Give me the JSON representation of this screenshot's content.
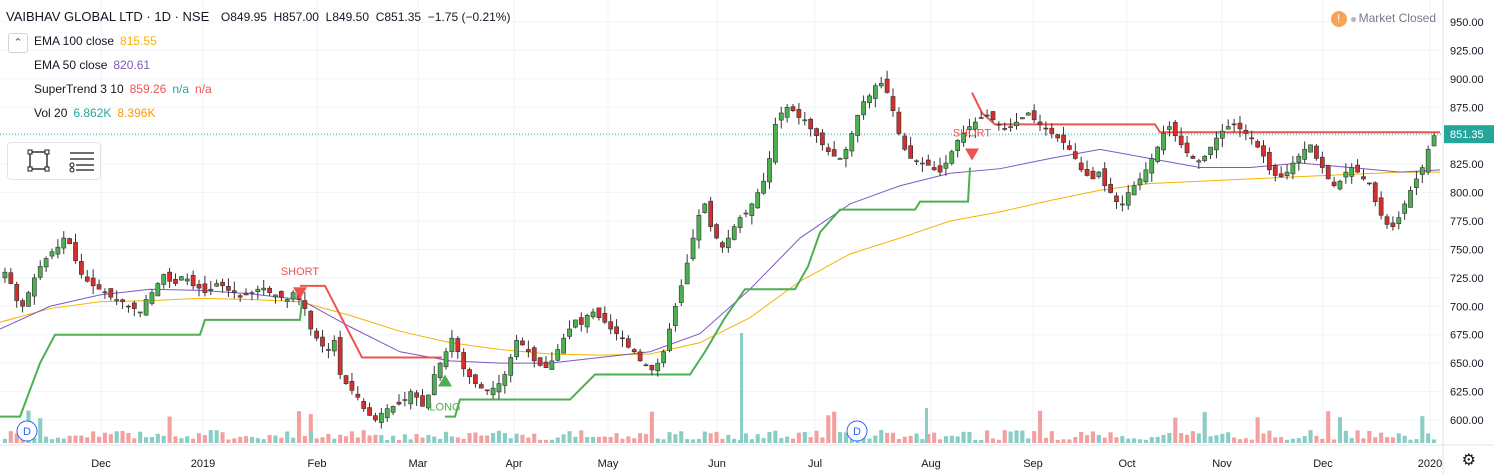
{
  "header": {
    "symbol": "VAIBHAV GLOBAL LTD · 1D · NSE",
    "open_label": "O",
    "open": "849.95",
    "high_label": "H",
    "high": "857.00",
    "low_label": "L",
    "low": "849.50",
    "close_label": "C",
    "close": "851.35",
    "change": "−1.75 (−0.21%)"
  },
  "indicators": [
    {
      "name": "EMA 100 close",
      "values": [
        "815.55"
      ],
      "color": "#f5b400"
    },
    {
      "name": "EMA 50 close",
      "values": [
        "820.61"
      ],
      "color": "#7e57c2"
    },
    {
      "name": "SuperTrend 3 10",
      "values": [
        "859.26",
        "n/a",
        "n/a"
      ],
      "colors": [
        "#ef5350",
        "#26a69a",
        "#ef5350"
      ]
    },
    {
      "name": "Vol 20",
      "values": [
        "6.862K",
        "8.396K"
      ],
      "colors": [
        "#26a69a",
        "#ff9800"
      ]
    }
  ],
  "market_status": {
    "icon": "!",
    "text": "Market Closed"
  },
  "colors": {
    "up": "#4caf50",
    "down": "#d32f2f",
    "ema100": "#f5b400",
    "ema50": "#7e57c2",
    "st_up": "#4caf50",
    "st_down": "#ef5350",
    "vol_up": "#89cdc5",
    "vol_down": "#f3a0a0",
    "last_price_bg": "#26a69a"
  },
  "chart_data": {
    "type": "candlestick",
    "price_axis": {
      "ticks": [
        "950.00",
        "925.00",
        "900.00",
        "875.00",
        "850.00",
        "825.00",
        "800.00",
        "775.00",
        "750.00",
        "725.00",
        "700.00",
        "675.00",
        "650.00",
        "625.00",
        "600.00"
      ],
      "range": [
        585,
        955
      ],
      "last_price": "851.35"
    },
    "time_axis": [
      "Dec",
      "2019",
      "Feb",
      "Mar",
      "Apr",
      "May",
      "Jun",
      "Jul",
      "Aug",
      "Sep",
      "Oct",
      "Nov",
      "Dec",
      "2020"
    ],
    "ema100_points": [
      [
        0,
        686
      ],
      [
        50,
        698
      ],
      [
        100,
        704
      ],
      [
        150,
        705
      ],
      [
        200,
        707
      ],
      [
        250,
        706
      ],
      [
        300,
        704
      ],
      [
        350,
        692
      ],
      [
        400,
        678
      ],
      [
        450,
        668
      ],
      [
        500,
        662
      ],
      [
        550,
        658
      ],
      [
        600,
        657
      ],
      [
        650,
        658
      ],
      [
        700,
        668
      ],
      [
        750,
        690
      ],
      [
        800,
        722
      ],
      [
        850,
        746
      ],
      [
        900,
        760
      ],
      [
        950,
        775
      ],
      [
        1000,
        783
      ],
      [
        1050,
        793
      ],
      [
        1100,
        802
      ],
      [
        1150,
        808
      ],
      [
        1200,
        810
      ],
      [
        1250,
        812
      ],
      [
        1300,
        814
      ],
      [
        1350,
        816
      ],
      [
        1400,
        818
      ],
      [
        1440,
        818
      ]
    ],
    "ema50_points": [
      [
        0,
        680
      ],
      [
        50,
        700
      ],
      [
        100,
        710
      ],
      [
        150,
        715
      ],
      [
        200,
        714
      ],
      [
        250,
        711
      ],
      [
        300,
        706
      ],
      [
        350,
        682
      ],
      [
        400,
        660
      ],
      [
        450,
        652
      ],
      [
        500,
        650
      ],
      [
        550,
        650
      ],
      [
        600,
        655
      ],
      [
        650,
        660
      ],
      [
        700,
        676
      ],
      [
        750,
        715
      ],
      [
        800,
        760
      ],
      [
        850,
        790
      ],
      [
        900,
        806
      ],
      [
        950,
        817
      ],
      [
        1000,
        821
      ],
      [
        1050,
        830
      ],
      [
        1100,
        838
      ],
      [
        1150,
        830
      ],
      [
        1200,
        822
      ],
      [
        1250,
        822
      ],
      [
        1300,
        826
      ],
      [
        1350,
        822
      ],
      [
        1400,
        818
      ],
      [
        1440,
        820
      ]
    ],
    "supertrend_segments": [
      {
        "dir": "up",
        "points": [
          [
            0,
            603
          ],
          [
            20,
            603
          ],
          [
            40,
            650
          ],
          [
            55,
            675
          ],
          [
            200,
            675
          ],
          [
            205,
            688
          ],
          [
            300,
            688
          ],
          [
            302,
            705
          ]
        ]
      },
      {
        "dir": "down",
        "points": [
          [
            300,
            718
          ],
          [
            325,
            718
          ],
          [
            362,
            655
          ],
          [
            442,
            655
          ]
        ]
      },
      {
        "dir": "up",
        "points": [
          [
            445,
            603
          ],
          [
            455,
            603
          ],
          [
            460,
            618
          ],
          [
            570,
            618
          ],
          [
            595,
            640
          ],
          [
            690,
            640
          ],
          [
            705,
            660
          ],
          [
            725,
            690
          ],
          [
            745,
            715
          ],
          [
            795,
            715
          ],
          [
            808,
            735
          ],
          [
            820,
            765
          ],
          [
            840,
            785
          ],
          [
            915,
            785
          ],
          [
            920,
            792
          ],
          [
            968,
            792
          ],
          [
            970,
            822
          ]
        ]
      },
      {
        "dir": "down",
        "points": [
          [
            972,
            888
          ],
          [
            982,
            870
          ],
          [
            995,
            860
          ],
          [
            1155,
            860
          ],
          [
            1160,
            853
          ],
          [
            1440,
            853
          ]
        ]
      }
    ],
    "signals": [
      {
        "label": "SHORT",
        "type": "short",
        "x": 300,
        "price": 708
      },
      {
        "label": "LONG",
        "type": "long",
        "x": 445,
        "price": 640
      },
      {
        "label": "SHORT",
        "type": "short",
        "x": 972,
        "price": 830
      }
    ],
    "dividend_markers": [
      {
        "label": "D",
        "x": 27
      },
      {
        "label": "D",
        "x": 857
      }
    ],
    "closes": [
      730,
      720,
      705,
      700,
      712,
      725,
      735,
      742,
      748,
      752,
      760,
      755,
      740,
      728,
      722,
      718,
      715,
      712,
      708,
      706,
      704,
      700,
      698,
      695,
      706,
      712,
      720,
      728,
      722,
      720,
      726,
      724,
      718,
      716,
      712,
      715,
      720,
      718,
      714,
      712,
      708,
      710,
      712,
      715,
      716,
      712,
      710,
      708,
      706,
      712,
      706,
      698,
      680,
      672,
      665,
      662,
      670,
      640,
      632,
      626,
      620,
      610,
      604,
      600,
      606,
      610,
      612,
      614,
      618,
      625,
      620,
      612,
      622,
      640,
      650,
      660,
      672,
      660,
      645,
      638,
      632,
      628,
      626,
      628,
      632,
      640,
      655,
      670,
      666,
      660,
      652,
      648,
      646,
      652,
      662,
      672,
      680,
      688,
      684,
      692,
      695,
      690,
      686,
      680,
      676,
      672,
      664,
      660,
      652,
      648,
      644,
      650,
      660,
      680,
      700,
      718,
      738,
      760,
      780,
      790,
      770,
      760,
      752,
      760,
      770,
      778,
      782,
      790,
      800,
      810,
      830,
      860,
      870,
      875,
      872,
      866,
      864,
      856,
      850,
      842,
      836,
      832,
      830,
      838,
      852,
      868,
      880,
      885,
      894,
      896,
      888,
      872,
      852,
      838,
      830,
      828,
      826,
      824,
      820,
      818,
      826,
      836,
      846,
      852,
      858,
      862,
      866,
      868,
      864,
      860,
      856,
      858,
      862,
      866,
      870,
      864,
      860,
      856,
      852,
      848,
      844,
      838,
      830,
      820,
      815,
      812,
      818,
      806,
      800,
      792,
      790,
      800,
      806,
      812,
      820,
      830,
      840,
      852,
      858,
      850,
      842,
      835,
      830,
      828,
      832,
      840,
      848,
      854,
      858,
      860,
      856,
      852,
      848,
      840,
      832,
      820,
      815,
      814,
      818,
      826,
      832,
      838,
      842,
      830,
      822,
      812,
      806,
      810,
      818,
      822,
      818,
      812,
      808,
      792,
      780,
      772,
      770,
      778,
      790,
      802,
      812,
      822,
      838,
      850
    ],
    "volume_bars_note": "relative heights"
  }
}
